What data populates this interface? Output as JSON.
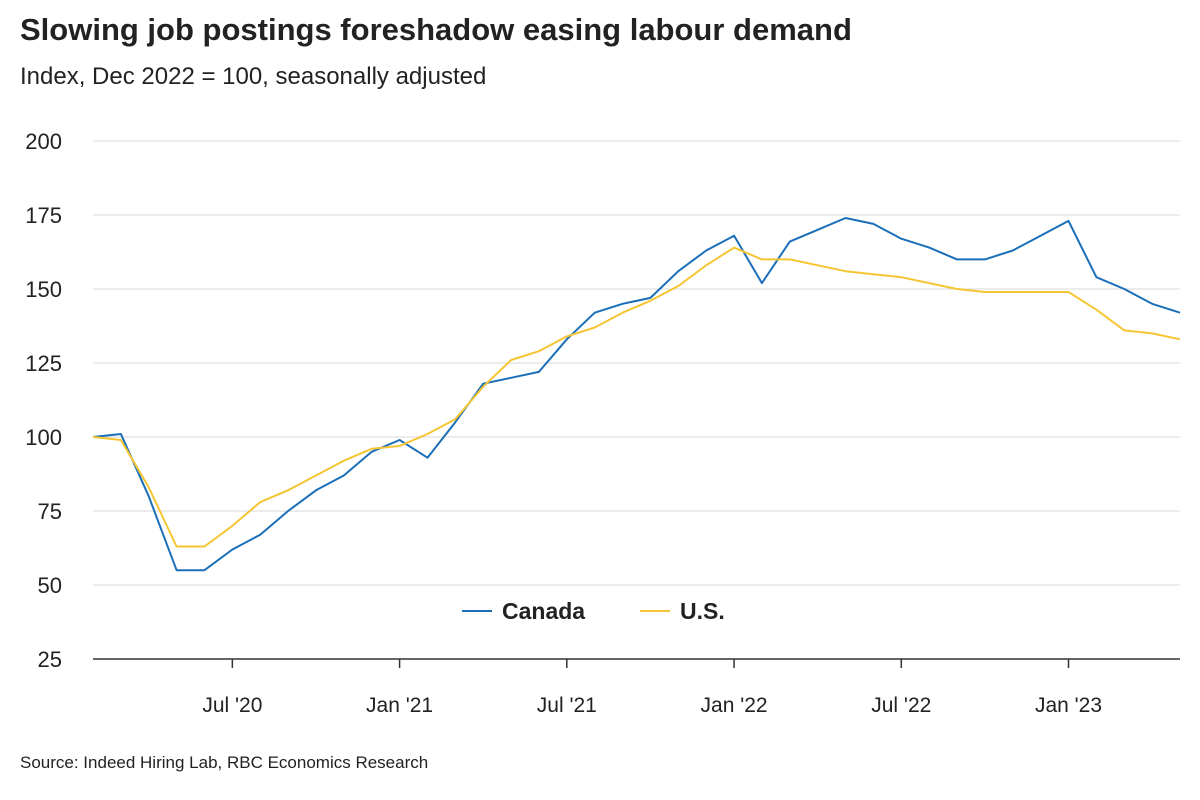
{
  "chart_data": {
    "type": "line",
    "title": "Slowing job postings foreshadow easing labour demand",
    "subtitle": "Index, Dec 2022 = 100, seasonally adjusted",
    "source": "Source: Indeed Hiring Lab, RBC Economics Research",
    "x": [
      "2020-02",
      "2020-03",
      "2020-04",
      "2020-05",
      "2020-06",
      "2020-07",
      "2020-08",
      "2020-09",
      "2020-10",
      "2020-11",
      "2020-12",
      "2021-01",
      "2021-02",
      "2021-03",
      "2021-04",
      "2021-05",
      "2021-06",
      "2021-07",
      "2021-08",
      "2021-09",
      "2021-10",
      "2021-11",
      "2021-12",
      "2022-01",
      "2022-02",
      "2022-03",
      "2022-04",
      "2022-05",
      "2022-06",
      "2022-07",
      "2022-08",
      "2022-09",
      "2022-10",
      "2022-11",
      "2022-12",
      "2023-01",
      "2023-02",
      "2023-03",
      "2023-04",
      "2023-05"
    ],
    "series": [
      {
        "name": "Canada",
        "color": "#1a6fb8",
        "values": [
          100,
          101,
          80,
          55,
          55,
          62,
          67,
          75,
          82,
          87,
          95,
          99,
          93,
          105,
          118,
          120,
          122,
          133,
          142,
          145,
          147,
          156,
          163,
          168,
          152,
          166,
          170,
          174,
          172,
          167,
          164,
          160,
          160,
          163,
          168,
          173,
          154,
          150,
          145,
          142
        ]
      },
      {
        "name": "U.S.",
        "color": "#f5c533",
        "values": [
          100,
          99,
          83,
          63,
          63,
          70,
          78,
          82,
          87,
          92,
          96,
          97,
          101,
          106,
          117,
          126,
          129,
          134,
          137,
          142,
          146,
          151,
          158,
          164,
          160,
          160,
          158,
          156,
          155,
          154,
          152,
          150,
          149,
          149,
          149,
          149,
          143,
          136,
          135,
          133
        ]
      }
    ],
    "xlim": [
      "2020-02",
      "2023-05"
    ],
    "xticks": [
      {
        "value": "2020-07",
        "label": "Jul '20"
      },
      {
        "value": "2021-01",
        "label": "Jan '21"
      },
      {
        "value": "2021-07",
        "label": "Jul '21"
      },
      {
        "value": "2022-01",
        "label": "Jan '22"
      },
      {
        "value": "2022-07",
        "label": "Jul '22"
      },
      {
        "value": "2023-01",
        "label": "Jan '23"
      }
    ],
    "ylim": [
      25,
      200
    ],
    "yticks": [
      25,
      50,
      75,
      100,
      125,
      150,
      175,
      200
    ],
    "grid": true,
    "legend": "bottom"
  }
}
